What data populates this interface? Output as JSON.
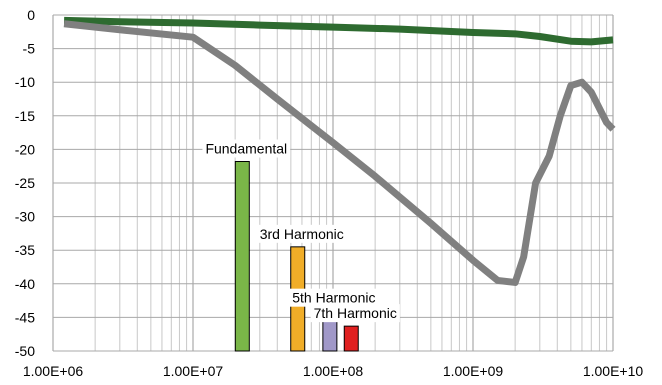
{
  "chart_data": {
    "type": "line",
    "x_scale": "log",
    "xlim": [
      1000000,
      10000000000
    ],
    "ylim": [
      -50,
      0
    ],
    "grid": true,
    "x_tick_values": [
      1000000,
      10000000,
      100000000,
      1000000000,
      10000000000
    ],
    "x_tick_labels": [
      "1.00E+06",
      "1.00E+07",
      "1.00E+08",
      "1.00E+09",
      "1.00E+10"
    ],
    "y_tick_values": [
      0,
      -5,
      -10,
      -15,
      -20,
      -25,
      -30,
      -35,
      -40,
      -45,
      -50
    ],
    "y_tick_labels": [
      "0",
      "-5",
      "-10",
      "-15",
      "-20",
      "-25",
      "-30",
      "-35",
      "-40",
      "-45",
      "-50"
    ],
    "series": [
      {
        "color": "#2e6b30",
        "points": [
          [
            1200000,
            -0.8
          ],
          [
            3000000,
            -1.0
          ],
          [
            10000000,
            -1.2
          ],
          [
            30000000,
            -1.5
          ],
          [
            100000000,
            -1.8
          ],
          [
            300000000,
            -2.1
          ],
          [
            1000000000,
            -2.6
          ],
          [
            2000000000,
            -2.8
          ],
          [
            3000000000,
            -3.2
          ],
          [
            5000000000,
            -3.9
          ],
          [
            7000000000,
            -4.0
          ],
          [
            10000000000,
            -3.7
          ]
        ]
      },
      {
        "color": "#808080",
        "points": [
          [
            1200000,
            -1.3
          ],
          [
            3000000,
            -2.2
          ],
          [
            10000000,
            -3.3
          ],
          [
            20000000,
            -7.5
          ],
          [
            40000000,
            -12.5
          ],
          [
            100000000,
            -19
          ],
          [
            200000000,
            -24
          ],
          [
            500000000,
            -31
          ],
          [
            1000000000,
            -36.5
          ],
          [
            1500000000,
            -39.5
          ],
          [
            2000000000,
            -39.8
          ],
          [
            2300000000,
            -36
          ],
          [
            2800000000,
            -25
          ],
          [
            3500000000,
            -21
          ],
          [
            4200000000,
            -15
          ],
          [
            5000000000,
            -10.5
          ],
          [
            6000000000,
            -10
          ],
          [
            7000000000,
            -11.5
          ],
          [
            9000000000,
            -16
          ],
          [
            10000000000,
            -17
          ]
        ]
      }
    ],
    "bars": [
      {
        "x": 22500000,
        "value": -21.8,
        "color": "#7ab648",
        "label": "Fundamental"
      },
      {
        "x": 56000000,
        "value": -34.5,
        "color": "#f0ad28",
        "label": "3rd Harmonic"
      },
      {
        "x": 95000000,
        "value": -44.0,
        "color": "#a098c8",
        "label": "5th Harmonic"
      },
      {
        "x": 135000000,
        "value": -46.3,
        "color": "#e02020",
        "label": "7th Harmonic"
      }
    ]
  }
}
